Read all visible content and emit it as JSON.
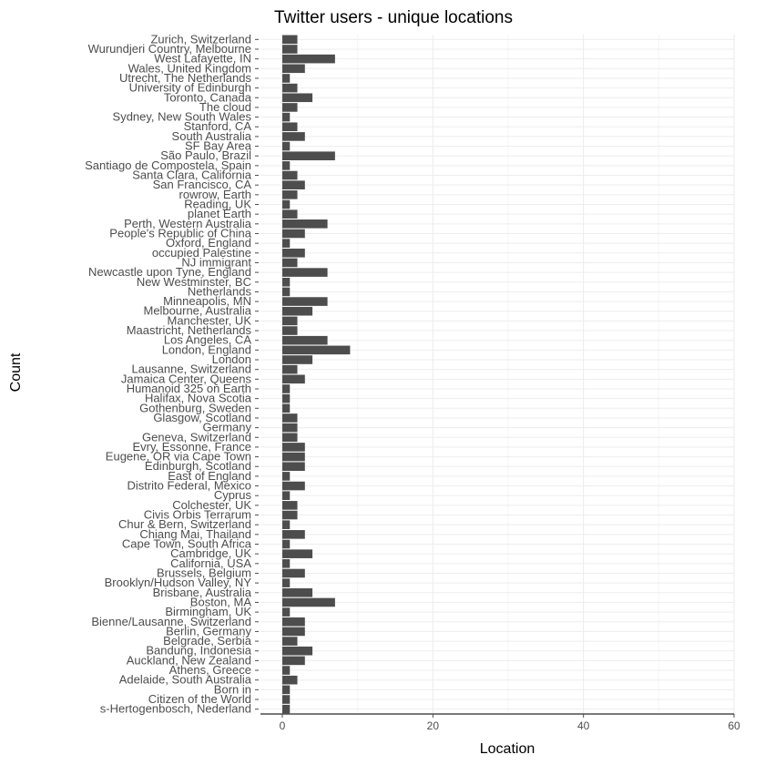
{
  "chart_data": {
    "type": "bar",
    "orientation": "horizontal",
    "title": "Twitter users - unique locations",
    "xlabel": "Location",
    "ylabel": "Count",
    "xlim": [
      0,
      60
    ],
    "xticks": [
      0,
      20,
      40,
      60
    ],
    "grid": true,
    "legend": "none",
    "categories": [
      "s-Hertogenbosch, Nederland",
      "Citizen of the World",
      "Born in",
      "Adelaide, South Australia",
      "Athens, Greece",
      "Auckland, New Zealand",
      "Bandung, Indonesia",
      "Belgrade, Serbia",
      "Berlin, Germany",
      "Bienne/Lausanne, Switzerland",
      "Birmingham, UK",
      "Boston, MA",
      "Brisbane, Australia",
      "Brooklyn/Hudson Valley, NY",
      "Brussels, Belgium",
      "California, USA",
      "Cambridge, UK",
      "Cape Town, South Africa",
      "Chiang Mai, Thailand",
      "Chur & Bern, Switzerland",
      "Civis Orbis Terrarum",
      "Colchester, UK",
      "Cyprus",
      "Distrito Federal, Mexico",
      "East of England",
      "Edinburgh, Scotland",
      "Eugene, OR via Cape Town",
      "Evry, Essonne, France",
      "Geneva, Switzerland",
      "Germany",
      "Glasgow, Scotland",
      "Gothenburg, Sweden",
      "Halifax, Nova Scotia",
      "Humanoid 325 on Earth",
      "Jamaica Center, Queens",
      "Lausanne, Switzerland",
      "London",
      "London, England",
      "Los Angeles, CA",
      "Maastricht, Netherlands",
      "Manchester, UK",
      "Melbourne, Australia",
      "Minneapolis, MN",
      "Netherlands",
      "New Westminster, BC",
      "Newcastle upon Tyne, England",
      "NJ immigrant",
      "occupied Palestine",
      "Oxford, England",
      "People's Republic of China",
      "Perth, Western Australia",
      "planet Earth",
      "Reading, UK",
      "rowrow, Earth",
      "San Francisco, CA",
      "Santa Clara, California",
      "Santiago de Compostela, Spain",
      "São Paulo, Brazil",
      "SF Bay Area",
      "South Australia",
      "Stanford, CA",
      "Sydney, New South Wales",
      "The cloud",
      "Toronto, Canada",
      "University of Edinburgh",
      "Utrecht, The Netherlands",
      "Wales, United Kingdom",
      "West Lafayette, IN",
      "Wurundjeri Country, Melbourne",
      "Zurich, Switzerland"
    ],
    "values": [
      1,
      1,
      1,
      2,
      1,
      3,
      4,
      2,
      3,
      3,
      1,
      7,
      4,
      1,
      3,
      1,
      4,
      1,
      3,
      1,
      2,
      2,
      1,
      3,
      1,
      3,
      3,
      3,
      2,
      2,
      2,
      1,
      1,
      1,
      3,
      2,
      4,
      9,
      6,
      2,
      2,
      4,
      6,
      1,
      1,
      6,
      2,
      3,
      1,
      3,
      6,
      2,
      1,
      2,
      3,
      2,
      1,
      7,
      1,
      3,
      2,
      1,
      2,
      4,
      2,
      1,
      3,
      7,
      2,
      2
    ]
  }
}
